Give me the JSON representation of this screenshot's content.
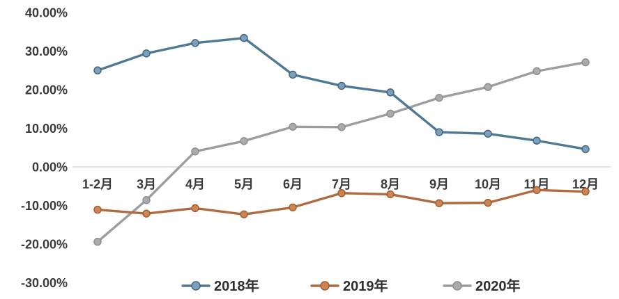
{
  "chart_data": {
    "type": "line",
    "title": "",
    "categories": [
      "1-2月",
      "3月",
      "4月",
      "5月",
      "6月",
      "7月",
      "8月",
      "9月",
      "10月",
      "11月",
      "12月"
    ],
    "series": [
      {
        "name": "2018年",
        "color": "#4e7996",
        "marker_fill": "#7ba0bd",
        "marker_stroke": "#3f617a",
        "values": [
          25.0,
          29.4,
          32.1,
          33.4,
          23.9,
          21.0,
          19.3,
          9.0,
          8.6,
          6.8,
          4.6
        ]
      },
      {
        "name": "2019年",
        "color": "#b06a40",
        "marker_fill": "#cd8552",
        "marker_stroke": "#9e5a2e",
        "values": [
          -11.1,
          -12.1,
          -10.7,
          -12.3,
          -10.5,
          -6.8,
          -7.1,
          -9.4,
          -9.3,
          -6.0,
          -6.4
        ]
      },
      {
        "name": "2020年",
        "color": "#9d9d9d",
        "marker_fill": "#ababab",
        "marker_stroke": "#8c8c8c",
        "values": [
          -19.4,
          -8.6,
          4.0,
          6.7,
          10.4,
          10.3,
          13.8,
          17.9,
          20.7,
          24.8,
          27.1
        ]
      }
    ],
    "y_axis": {
      "tick_labels": [
        "40.00%",
        "30.00%",
        "20.00%",
        "10.00%",
        "0.00%",
        "-10.00%",
        "-20.00%",
        "-30.00%"
      ],
      "tick_values": [
        40,
        30,
        20,
        10,
        0,
        -10,
        -20,
        -30
      ],
      "min": -30,
      "max": 40
    },
    "legend": {
      "position": "bottom",
      "entries": [
        "2018年",
        "2019年",
        "2020年"
      ]
    },
    "grid": false,
    "zero_axis_line_color": "#d8d8d8",
    "text_color": "#3a3a3a",
    "background": "#ffffff"
  }
}
